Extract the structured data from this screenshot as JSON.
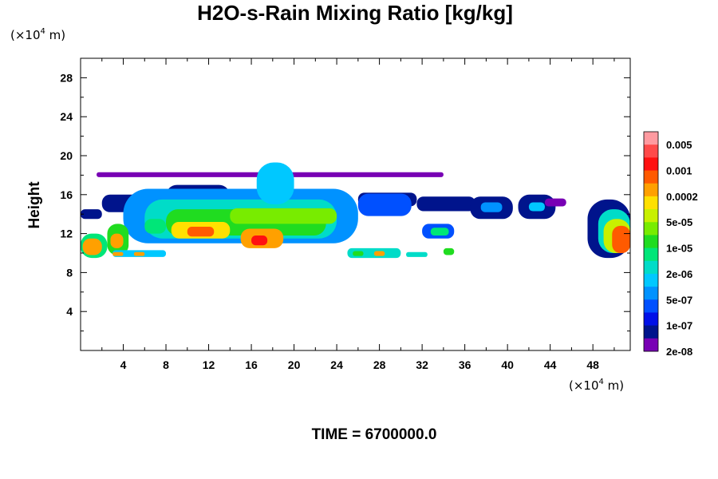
{
  "chart_data": {
    "type": "filled-contour",
    "title": "H2O-s-Rain Mixing Ratio [kg/kg]",
    "ylabel": "Height",
    "xlabel": "",
    "x_unit_prefix": "(×10",
    "unit_exponent": "4",
    "unit_suffix": " m)",
    "xlim": [
      0,
      51.5
    ],
    "ylim": [
      0,
      30
    ],
    "x_ticks": [
      "4",
      "8",
      "12",
      "16",
      "20",
      "24",
      "28",
      "32",
      "36",
      "40",
      "44",
      "48"
    ],
    "x_tick_values": [
      4,
      8,
      12,
      16,
      20,
      24,
      28,
      32,
      36,
      40,
      44,
      48
    ],
    "y_ticks": [
      "4",
      "8",
      "12",
      "16",
      "20",
      "24",
      "28"
    ],
    "y_tick_values": [
      4,
      8,
      12,
      16,
      20,
      24,
      28
    ],
    "colorbar": {
      "labels": [
        "0.005",
        "0.001",
        "0.0002",
        "5e-05",
        "1e-05",
        "2e-06",
        "5e-07",
        "1e-07",
        "2e-08"
      ],
      "colors": [
        "#ff9aa0",
        "#ff4a4a",
        "#ff1010",
        "#ff5a00",
        "#ffa000",
        "#ffe000",
        "#c8f000",
        "#78ec00",
        "#20dc20",
        "#00e678",
        "#00dcc8",
        "#00c8ff",
        "#0092ff",
        "#0050ff",
        "#0010e8",
        "#00148c",
        "#7800b4"
      ]
    },
    "regions": [
      {
        "x": [
          0.0,
          2.0
        ],
        "y": [
          13.5,
          14.5
        ],
        "level": 1
      },
      {
        "x": [
          2.0,
          8.0
        ],
        "y": [
          14.2,
          16.0
        ],
        "level": 1
      },
      {
        "x": [
          8.0,
          14.0
        ],
        "y": [
          14.5,
          17.0
        ],
        "level": 1
      },
      {
        "x": [
          1.5,
          34.0
        ],
        "y": [
          17.8,
          18.3
        ],
        "level": 0
      },
      {
        "x": [
          26.0,
          31.5
        ],
        "y": [
          14.8,
          16.2
        ],
        "level": 1
      },
      {
        "x": [
          4.0,
          26.0
        ],
        "y": [
          11.0,
          16.6
        ],
        "level": 4
      },
      {
        "x": [
          6.0,
          24.0
        ],
        "y": [
          11.5,
          15.5
        ],
        "level": 6
      },
      {
        "x": [
          8.0,
          23.0
        ],
        "y": [
          11.8,
          14.5
        ],
        "level": 8
      },
      {
        "x": [
          16.5,
          20.0
        ],
        "y": [
          15.0,
          19.3
        ],
        "level": 5
      },
      {
        "x": [
          14.0,
          24.0
        ],
        "y": [
          13.0,
          14.6
        ],
        "level": 9
      },
      {
        "x": [
          8.5,
          14.0
        ],
        "y": [
          11.5,
          13.2
        ],
        "level": 11
      },
      {
        "x": [
          15.0,
          19.0
        ],
        "y": [
          10.5,
          12.5
        ],
        "level": 12
      },
      {
        "x": [
          10.0,
          12.5
        ],
        "y": [
          11.7,
          12.7
        ],
        "level": 13
      },
      {
        "x": [
          16.0,
          17.5
        ],
        "y": [
          10.8,
          11.8
        ],
        "level": 14
      },
      {
        "x": [
          26.0,
          31.0
        ],
        "y": [
          13.8,
          16.1
        ],
        "level": 3
      },
      {
        "x": [
          31.5,
          37.0
        ],
        "y": [
          14.3,
          15.8
        ],
        "level": 1
      },
      {
        "x": [
          0.0,
          2.5
        ],
        "y": [
          9.5,
          12.0
        ],
        "level": 7
      },
      {
        "x": [
          0.2,
          2.0
        ],
        "y": [
          9.8,
          11.5
        ],
        "level": 12
      },
      {
        "x": [
          2.5,
          4.5
        ],
        "y": [
          9.8,
          13.0
        ],
        "level": 8
      },
      {
        "x": [
          2.8,
          4.0
        ],
        "y": [
          10.5,
          12.0
        ],
        "level": 12
      },
      {
        "x": [
          3.0,
          8.0
        ],
        "y": [
          9.6,
          10.3
        ],
        "level": 5
      },
      {
        "x": [
          3.0,
          4.0
        ],
        "y": [
          9.7,
          10.1
        ],
        "level": 12
      },
      {
        "x": [
          5.0,
          6.0
        ],
        "y": [
          9.7,
          10.1
        ],
        "level": 12
      },
      {
        "x": [
          6.0,
          8.0
        ],
        "y": [
          12.0,
          13.5
        ],
        "level": 7
      },
      {
        "x": [
          25.0,
          30.0
        ],
        "y": [
          9.5,
          10.5
        ],
        "level": 6
      },
      {
        "x": [
          27.5,
          28.5
        ],
        "y": [
          9.7,
          10.2
        ],
        "level": 12
      },
      {
        "x": [
          25.5,
          26.5
        ],
        "y": [
          9.7,
          10.2
        ],
        "level": 8
      },
      {
        "x": [
          30.5,
          32.5
        ],
        "y": [
          9.6,
          10.1
        ],
        "level": 6
      },
      {
        "x": [
          32.0,
          35.0
        ],
        "y": [
          11.5,
          13.0
        ],
        "level": 3
      },
      {
        "x": [
          32.8,
          34.5
        ],
        "y": [
          11.8,
          12.6
        ],
        "level": 7
      },
      {
        "x": [
          34.0,
          35.0
        ],
        "y": [
          9.8,
          10.5
        ],
        "level": 8
      },
      {
        "x": [
          36.5,
          40.5
        ],
        "y": [
          13.5,
          15.8
        ],
        "level": 1
      },
      {
        "x": [
          37.5,
          39.5
        ],
        "y": [
          14.2,
          15.2
        ],
        "level": 4
      },
      {
        "x": [
          41.0,
          44.5
        ],
        "y": [
          13.5,
          16.0
        ],
        "level": 1
      },
      {
        "x": [
          42.0,
          43.5
        ],
        "y": [
          14.3,
          15.2
        ],
        "level": 5
      },
      {
        "x": [
          43.5,
          45.5
        ],
        "y": [
          14.8,
          15.6
        ],
        "level": 0
      },
      {
        "x": [
          47.5,
          51.5
        ],
        "y": [
          9.5,
          15.5
        ],
        "level": 1
      },
      {
        "x": [
          48.5,
          51.5
        ],
        "y": [
          10.0,
          14.5
        ],
        "level": 6
      },
      {
        "x": [
          49.0,
          51.5
        ],
        "y": [
          10.0,
          13.5
        ],
        "level": 10
      },
      {
        "x": [
          49.8,
          51.5
        ],
        "y": [
          10.0,
          12.8
        ],
        "level": 13
      }
    ],
    "time_label": "TIME = 6700000.0"
  }
}
